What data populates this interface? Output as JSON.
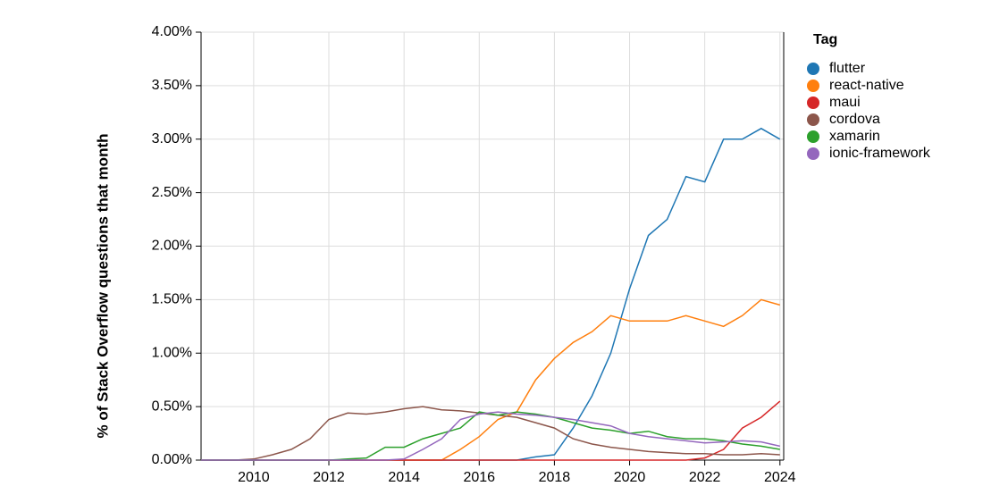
{
  "chart_data": {
    "type": "line",
    "y_label": "% of Stack Overflow questions that month",
    "legend_title": "Tag",
    "legend": "right",
    "grid": true,
    "x": [
      2008.6,
      2009,
      2009.5,
      2010,
      2010.5,
      2011,
      2011.5,
      2012,
      2012.5,
      2013,
      2013.5,
      2014,
      2014.5,
      2015,
      2015.5,
      2016,
      2016.5,
      2017,
      2017.5,
      2018,
      2018.5,
      2019,
      2019.5,
      2020,
      2020.5,
      2021,
      2021.5,
      2022,
      2022.5,
      2023,
      2023.5,
      2024
    ],
    "xlim": [
      2008.6,
      2024.1
    ],
    "xticks": [
      2010,
      2012,
      2014,
      2016,
      2018,
      2020,
      2022,
      2024
    ],
    "ylim": [
      0,
      4
    ],
    "yticks": [
      {
        "value": 0,
        "label": "0.00%"
      },
      {
        "value": 0.5,
        "label": "0.50%"
      },
      {
        "value": 1,
        "label": "1.00%"
      },
      {
        "value": 1.5,
        "label": "1.50%"
      },
      {
        "value": 2,
        "label": "2.00%"
      },
      {
        "value": 2.5,
        "label": "2.50%"
      },
      {
        "value": 3,
        "label": "3.00%"
      },
      {
        "value": 3.5,
        "label": "3.50%"
      },
      {
        "value": 4,
        "label": "4.00%"
      }
    ],
    "series": [
      {
        "name": "flutter",
        "color": "#1f77b4",
        "values": [
          0,
          0,
          0,
          0,
          0,
          0,
          0,
          0,
          0,
          0,
          0,
          0,
          0,
          0,
          0,
          0,
          0,
          0,
          0.03,
          0.05,
          0.3,
          0.6,
          1.0,
          1.6,
          2.1,
          2.25,
          2.65,
          2.6,
          3.0,
          3.0,
          3.1,
          3.0
        ]
      },
      {
        "name": "react-native",
        "color": "#ff7f0e",
        "values": [
          0,
          0,
          0,
          0,
          0,
          0,
          0,
          0,
          0,
          0,
          0,
          0,
          0,
          0,
          0.1,
          0.22,
          0.38,
          0.45,
          0.75,
          0.95,
          1.1,
          1.2,
          1.35,
          1.3,
          1.3,
          1.3,
          1.35,
          1.3,
          1.25,
          1.35,
          1.5,
          1.45
        ]
      },
      {
        "name": "maui",
        "color": "#d62728",
        "values": [
          0,
          0,
          0,
          0,
          0,
          0,
          0,
          0,
          0,
          0,
          0,
          0,
          0,
          0,
          0,
          0,
          0,
          0,
          0,
          0,
          0,
          0,
          0,
          0,
          0,
          0,
          0,
          0.02,
          0.1,
          0.3,
          0.4,
          0.55
        ]
      },
      {
        "name": "cordova",
        "color": "#8c564b",
        "values": [
          0,
          0,
          0,
          0.01,
          0.05,
          0.1,
          0.2,
          0.38,
          0.44,
          0.43,
          0.45,
          0.48,
          0.5,
          0.47,
          0.46,
          0.44,
          0.42,
          0.4,
          0.35,
          0.3,
          0.2,
          0.15,
          0.12,
          0.1,
          0.08,
          0.07,
          0.06,
          0.06,
          0.05,
          0.05,
          0.06,
          0.05
        ]
      },
      {
        "name": "xamarin",
        "color": "#2ca02c",
        "values": [
          0,
          0,
          0,
          0,
          0,
          0,
          0,
          0,
          0.01,
          0.02,
          0.12,
          0.12,
          0.2,
          0.25,
          0.3,
          0.45,
          0.42,
          0.45,
          0.43,
          0.4,
          0.35,
          0.3,
          0.28,
          0.25,
          0.27,
          0.22,
          0.2,
          0.2,
          0.18,
          0.15,
          0.13,
          0.1
        ]
      },
      {
        "name": "ionic-framework",
        "color": "#9467bd",
        "values": [
          0,
          0,
          0,
          0,
          0,
          0,
          0,
          0,
          0,
          0,
          0,
          0.01,
          0.1,
          0.2,
          0.38,
          0.43,
          0.45,
          0.43,
          0.42,
          0.4,
          0.38,
          0.35,
          0.32,
          0.25,
          0.22,
          0.2,
          0.18,
          0.16,
          0.17,
          0.18,
          0.17,
          0.13
        ]
      }
    ]
  }
}
